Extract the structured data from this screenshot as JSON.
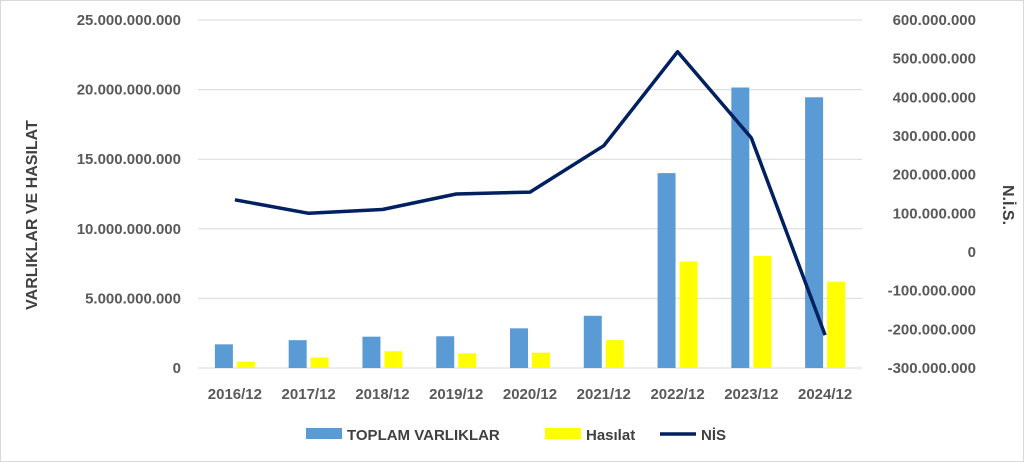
{
  "chart_data": {
    "type": "bar",
    "categories": [
      "2016/12",
      "2017/12",
      "2018/12",
      "2019/12",
      "2020/12",
      "2021/12",
      "2022/12",
      "2023/12",
      "2024/12"
    ],
    "series": [
      {
        "name": "TOPLAM VARLIKLAR",
        "type": "bar",
        "axis": "left",
        "color": "#5b9bd5",
        "values": [
          1700000000,
          2000000000,
          2250000000,
          2280000000,
          2850000000,
          3750000000,
          14000000000,
          20150000000,
          19450000000
        ]
      },
      {
        "name": "Hasılat",
        "type": "bar",
        "axis": "left",
        "color": "#ffff00",
        "values": [
          450000000,
          750000000,
          1200000000,
          1050000000,
          1100000000,
          2000000000,
          7650000000,
          8050000000,
          6200000000
        ]
      },
      {
        "name": "NİS",
        "type": "line",
        "axis": "right",
        "color": "#002060",
        "values": [
          135000000,
          100000000,
          110000000,
          150000000,
          155000000,
          275000000,
          518000000,
          295000000,
          -215000000
        ]
      }
    ],
    "ylabel": "VARLIKLAR VE HASILAT",
    "y2label": "N.İ.S.",
    "ylim": [
      0,
      25000000000
    ],
    "y2lim": [
      -300000000,
      600000000
    ],
    "yticks": [
      "0",
      "5.000.000.000",
      "10.000.000.000",
      "15.000.000.000",
      "20.000.000.000",
      "25.000.000.000"
    ],
    "y2ticks": [
      "-300.000.000",
      "-200.000.000",
      "-100.000.000",
      "0",
      "100.000.000",
      "200.000.000",
      "300.000.000",
      "400.000.000",
      "500.000.000",
      "600.000.000"
    ],
    "grid": true,
    "legend_position": "bottom"
  }
}
